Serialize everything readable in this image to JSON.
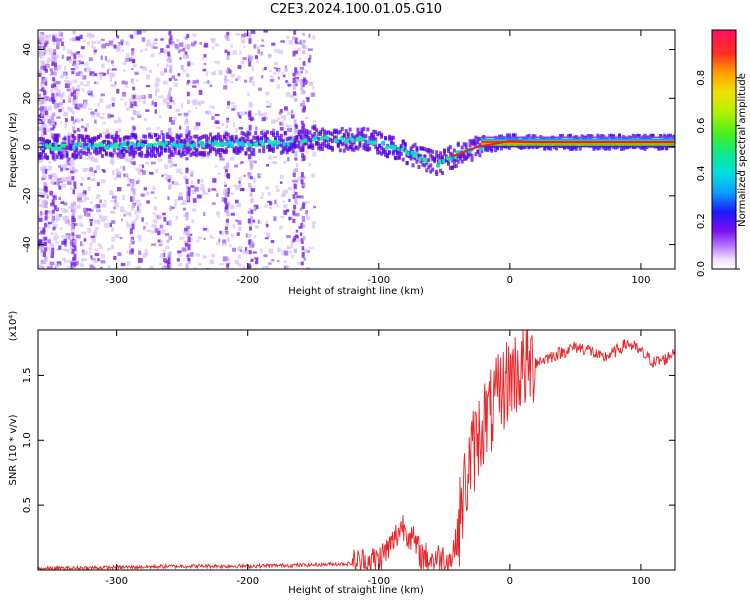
{
  "title": "C2E3.2024.100.01.05.G10",
  "chart_data": [
    {
      "type": "heatmap",
      "title": "",
      "xlabel": "Height of straight line (km)",
      "ylabel": "Frequency (Hz)",
      "xlim": [
        -360,
        126
      ],
      "ylim": [
        -50,
        48
      ],
      "xticks": [
        -300,
        -200,
        -100,
        0,
        100
      ],
      "yticks": [
        -40,
        -20,
        0,
        20,
        40
      ],
      "grid": false,
      "ridge": {
        "x": [
          -360,
          -300,
          -250,
          -200,
          -160,
          -150,
          -130,
          -110,
          -90,
          -70,
          -55,
          -45,
          -35,
          -25,
          -10,
          0,
          20,
          60,
          126
        ],
        "y": [
          0,
          0.5,
          1,
          1.5,
          2,
          4,
          3,
          3,
          0,
          -4,
          -7,
          -4,
          -2,
          0,
          1.5,
          2.5,
          2,
          2,
          2
        ]
      },
      "colorbar": {
        "label": "Normalized spectral amplitude",
        "range": [
          0.0,
          1.0
        ],
        "ticks": [
          0.0,
          0.2,
          0.4,
          0.6,
          0.8
        ],
        "tick_labels": [
          "0.0",
          "0.2",
          "0.4",
          "0.6",
          "0.8"
        ]
      }
    },
    {
      "type": "line",
      "title": "",
      "xlabel": "Height of straight line (km)",
      "ylabel": "SNR (10 * v/v)",
      "y_multiplier": "(x10⁴)",
      "xlim": [
        -360,
        126
      ],
      "ylim": [
        0,
        1.85
      ],
      "xticks": [
        -300,
        -200,
        -100,
        0,
        100
      ],
      "yticks": [
        0.5,
        1.0,
        1.5
      ],
      "ytick_labels": [
        "0.5",
        "1.0",
        "1.5"
      ],
      "grid": false,
      "series": [
        {
          "color": "#e8262a",
          "x": [
            -360,
            -300,
            -250,
            -200,
            -150,
            -120,
            -100,
            -90,
            -82,
            -75,
            -68,
            -60,
            -52,
            -45,
            -40,
            -35,
            -30,
            -25,
            -20,
            -15,
            -10,
            -5,
            0,
            10,
            20,
            30,
            40,
            50,
            60,
            70,
            80,
            90,
            100,
            110,
            120,
            126
          ],
          "y": [
            0.01,
            0.02,
            0.03,
            0.03,
            0.04,
            0.05,
            0.08,
            0.2,
            0.35,
            0.25,
            0.12,
            0.08,
            0.1,
            0.08,
            0.25,
            0.6,
            0.85,
            1.0,
            1.15,
            1.2,
            1.3,
            1.4,
            1.5,
            1.55,
            1.6,
            1.64,
            1.68,
            1.72,
            1.7,
            1.63,
            1.68,
            1.75,
            1.68,
            1.6,
            1.63,
            1.7
          ]
        }
      ]
    }
  ]
}
